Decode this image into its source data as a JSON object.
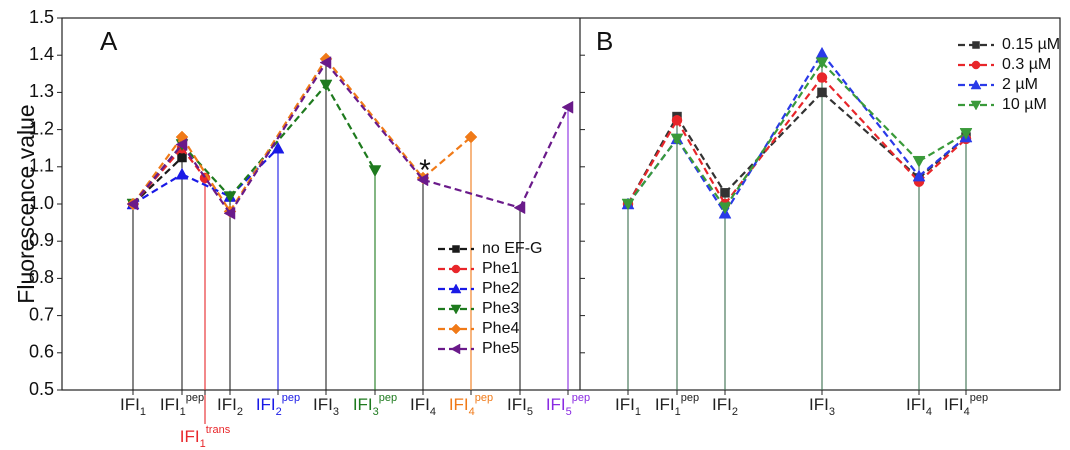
{
  "chart_data": [
    {
      "type": "line",
      "panel": "A",
      "ylabel": "Fluorescence value",
      "ylim": [
        0.5,
        1.5
      ],
      "yticks": [
        0.5,
        0.6,
        0.7,
        0.8,
        0.9,
        {
          "value": 1,
          "label": "1.0"
        },
        1.1,
        1.2,
        1.3,
        1.4,
        1.5
      ],
      "categories": [
        {
          "text": "IFI",
          "sub": "1",
          "color": "#222222"
        },
        {
          "text": "IFI",
          "sub": "1",
          "sup": "pep",
          "color": "#222222"
        },
        {
          "text": "IFI",
          "sub": "1",
          "sup": "trans",
          "color": "#e8262a"
        },
        {
          "text": "IFI",
          "sub": "2",
          "color": "#222222"
        },
        {
          "text": "IFI",
          "sub": "2",
          "sup": "pep",
          "color": "#1a1ae6"
        },
        {
          "text": "IFI",
          "sub": "3",
          "color": "#222222"
        },
        {
          "text": "IFI",
          "sub": "3",
          "sup": "pep",
          "color": "#1e7a1e"
        },
        {
          "text": "IFI",
          "sub": "4",
          "color": "#222222"
        },
        {
          "text": "IFI",
          "sub": "4",
          "sup": "pep",
          "color": "#f07a18"
        },
        {
          "text": "IFI",
          "sub": "5",
          "color": "#222222"
        },
        {
          "text": "IFI",
          "sub": "5",
          "sup": "pep",
          "color": "#8a2be2"
        }
      ],
      "annotations": [
        "*"
      ],
      "legend": "center right",
      "series": [
        {
          "name": "no EF-G",
          "color": "#1a1a1a",
          "marker": "square",
          "values": [
            1.0,
            1.125,
            null,
            null,
            null,
            null,
            null,
            null,
            null,
            null,
            null
          ]
        },
        {
          "name": "Phe1",
          "color": "#e8262a",
          "marker": "circle",
          "values": [
            1.0,
            1.15,
            1.07,
            null,
            null,
            null,
            null,
            null,
            null,
            null,
            null
          ]
        },
        {
          "name": "Phe2",
          "color": "#1a1ae6",
          "marker": "triangle-up",
          "values": [
            1.0,
            1.08,
            null,
            1.02,
            1.15,
            null,
            null,
            null,
            null,
            null,
            null
          ]
        },
        {
          "name": "Phe3",
          "color": "#1e7a1e",
          "marker": "triangle-down",
          "values": [
            1.0,
            1.16,
            null,
            1.02,
            null,
            1.32,
            1.09,
            null,
            null,
            null,
            null
          ]
        },
        {
          "name": "Phe4",
          "color": "#f07a18",
          "marker": "diamond",
          "values": [
            1.0,
            1.18,
            null,
            0.98,
            null,
            1.39,
            null,
            1.07,
            1.18,
            null,
            null
          ]
        },
        {
          "name": "Phe5",
          "color": "#6a1a8a",
          "marker": "triangle-left",
          "values": [
            1.0,
            1.16,
            null,
            0.975,
            null,
            1.38,
            null,
            1.065,
            null,
            0.99,
            1.26
          ]
        }
      ]
    },
    {
      "type": "line",
      "panel": "B",
      "ylim": [
        0.5,
        1.5
      ],
      "drop_color": "#3b6e4e",
      "categories": [
        {
          "text": "IFI",
          "sub": "1",
          "color": "#222222"
        },
        {
          "text": "IFI",
          "sub": "1",
          "sup": "pep",
          "color": "#222222"
        },
        {
          "text": "IFI",
          "sub": "2",
          "color": "#222222"
        },
        {
          "text": "IFI",
          "sub": "3",
          "color": "#222222"
        },
        {
          "text": "IFI",
          "sub": "4",
          "color": "#222222"
        },
        {
          "text": "IFI",
          "sub": "4",
          "sup": "pep",
          "color": "#222222"
        }
      ],
      "legend": "upper right",
      "series": [
        {
          "name": "0.15 µM",
          "color": "#333333",
          "marker": "square",
          "values": [
            1.0,
            1.235,
            1.03,
            1.3,
            1.07,
            1.18
          ]
        },
        {
          "name": "0.3 µM",
          "color": "#e8262a",
          "marker": "circle",
          "values": [
            1.0,
            1.225,
            1.0,
            1.34,
            1.06,
            1.175
          ]
        },
        {
          "name": "2 µM",
          "color": "#2a3ae8",
          "marker": "triangle-up",
          "values": [
            1.0,
            1.175,
            0.975,
            1.405,
            1.075,
            1.18
          ]
        },
        {
          "name": "10 µM",
          "color": "#3a9a3a",
          "marker": "triangle-down",
          "values": [
            1.0,
            1.175,
            0.99,
            1.38,
            1.115,
            1.19
          ]
        }
      ]
    }
  ]
}
